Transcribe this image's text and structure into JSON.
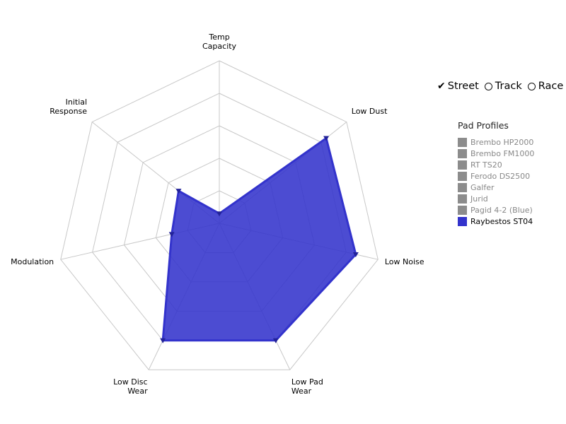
{
  "chart_data": {
    "type": "radar",
    "axes": [
      [
        "Temp",
        "Capacity"
      ],
      [
        "Low Dust"
      ],
      [
        "Low Noise"
      ],
      [
        "Low Pad",
        "Wear"
      ],
      [
        "Low Disc",
        "Wear"
      ],
      [
        "Modulation"
      ],
      [
        "Initial",
        "Response"
      ]
    ],
    "range": [
      0,
      5
    ],
    "series": [
      {
        "name": "Raybestos ST04",
        "values": [
          0.3,
          4.2,
          4.3,
          4.0,
          4.0,
          1.5,
          1.6
        ],
        "color": "#3333cc"
      }
    ]
  },
  "modes": {
    "options": [
      {
        "label": "Street",
        "selected": true
      },
      {
        "label": "Track",
        "selected": false
      },
      {
        "label": "Race",
        "selected": false
      }
    ]
  },
  "legend": {
    "title": "Pad Profiles",
    "items": [
      {
        "label": "Brembo HP2000",
        "color": "#8c8c8c",
        "active": false
      },
      {
        "label": "Brembo FM1000",
        "color": "#8c8c8c",
        "active": false
      },
      {
        "label": "RT TS20",
        "color": "#8c8c8c",
        "active": false
      },
      {
        "label": "Ferodo DS2500",
        "color": "#8c8c8c",
        "active": false
      },
      {
        "label": "Galfer",
        "color": "#8c8c8c",
        "active": false
      },
      {
        "label": "Jurid",
        "color": "#8c8c8c",
        "active": false
      },
      {
        "label": "Pagid 4-2 (Blue)",
        "color": "#8c8c8c",
        "active": false
      },
      {
        "label": "Raybestos ST04",
        "color": "#3333cc",
        "active": true
      }
    ]
  }
}
